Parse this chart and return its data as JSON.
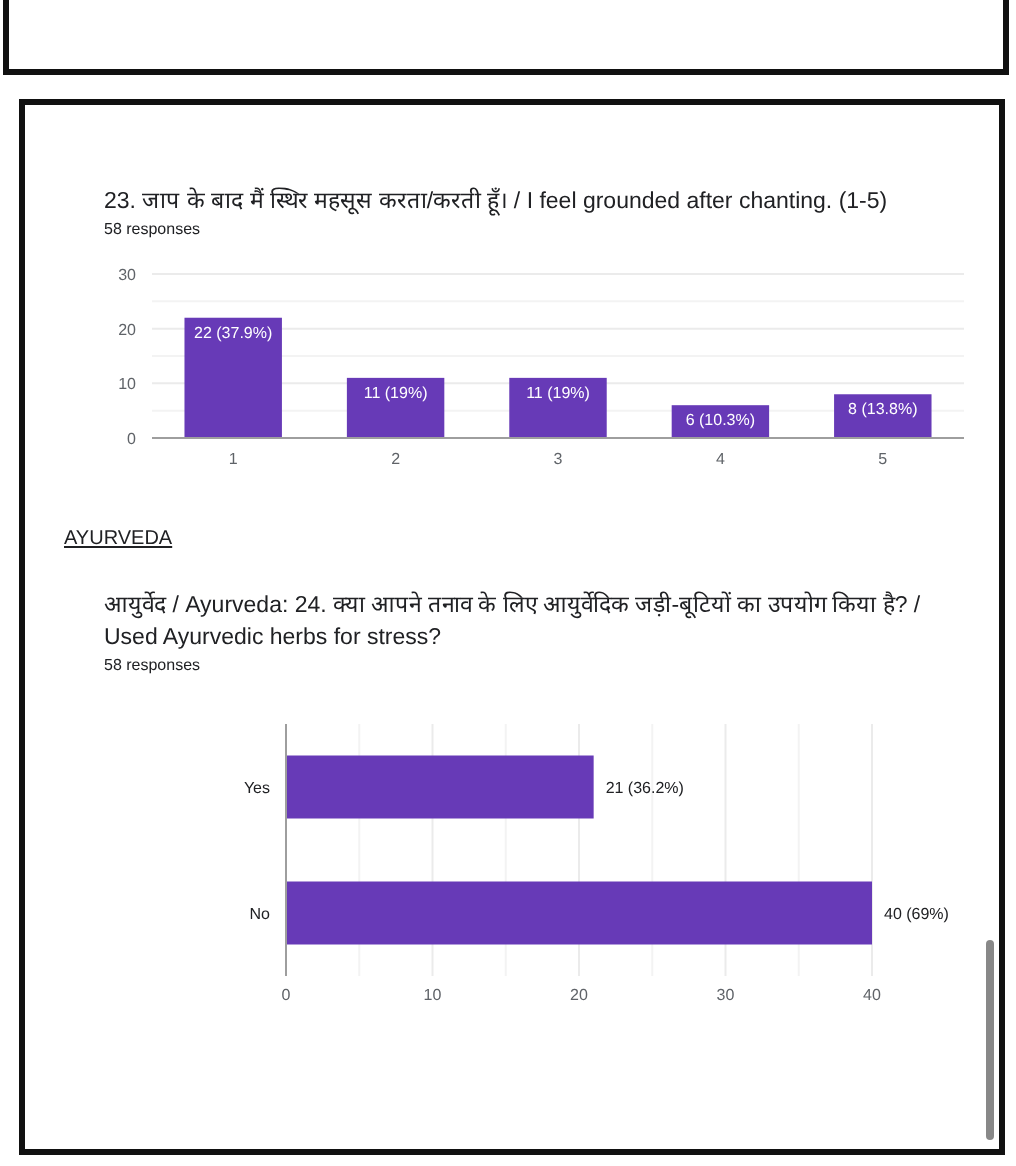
{
  "chart_data": [
    {
      "type": "bar",
      "title": "23. जाप के बाद मैं स्थिर महसूस करता/करती हूँ। / I feel grounded after chanting. (1-5)",
      "subtitle": "58 responses",
      "categories": [
        "1",
        "2",
        "3",
        "4",
        "5"
      ],
      "values": [
        22,
        11,
        11,
        6,
        8
      ],
      "value_labels": [
        "22 (37.9%)",
        "11 (19%)",
        "11 (19%)",
        "6 (10.3%)",
        "8 (13.8%)"
      ],
      "color": "#673ab7",
      "ylim": [
        0,
        30
      ],
      "yticks": [
        0,
        {
          "value": 5,
          "label": null
        },
        10,
        {
          "value": 15,
          "label": null
        },
        20,
        {
          "value": 25,
          "label": null
        },
        30
      ],
      "grid": true
    },
    {
      "type": "bar",
      "orientation": "horizontal",
      "title": "आयुर्वेद / Ayurveda:  24. क्या आपने तनाव के लिए आयुर्वेदिक जड़ी-बूटियों का उपयोग किया है? / Used Ayurvedic herbs for stress?",
      "subtitle": "58 responses",
      "annotations": [
        "AYURVEDA"
      ],
      "categories": [
        "Yes",
        "No"
      ],
      "values": [
        21,
        40
      ],
      "value_labels": [
        "21 (36.2%)",
        "40 (69%)"
      ],
      "color": "#673ab7",
      "xlim": [
        0,
        40
      ],
      "xticks": [
        0,
        {
          "value": 5,
          "label": null
        },
        10,
        {
          "value": 15,
          "label": null
        },
        20,
        {
          "value": 25,
          "label": null
        },
        30,
        {
          "value": 35,
          "label": null
        },
        40
      ],
      "grid": true
    }
  ]
}
